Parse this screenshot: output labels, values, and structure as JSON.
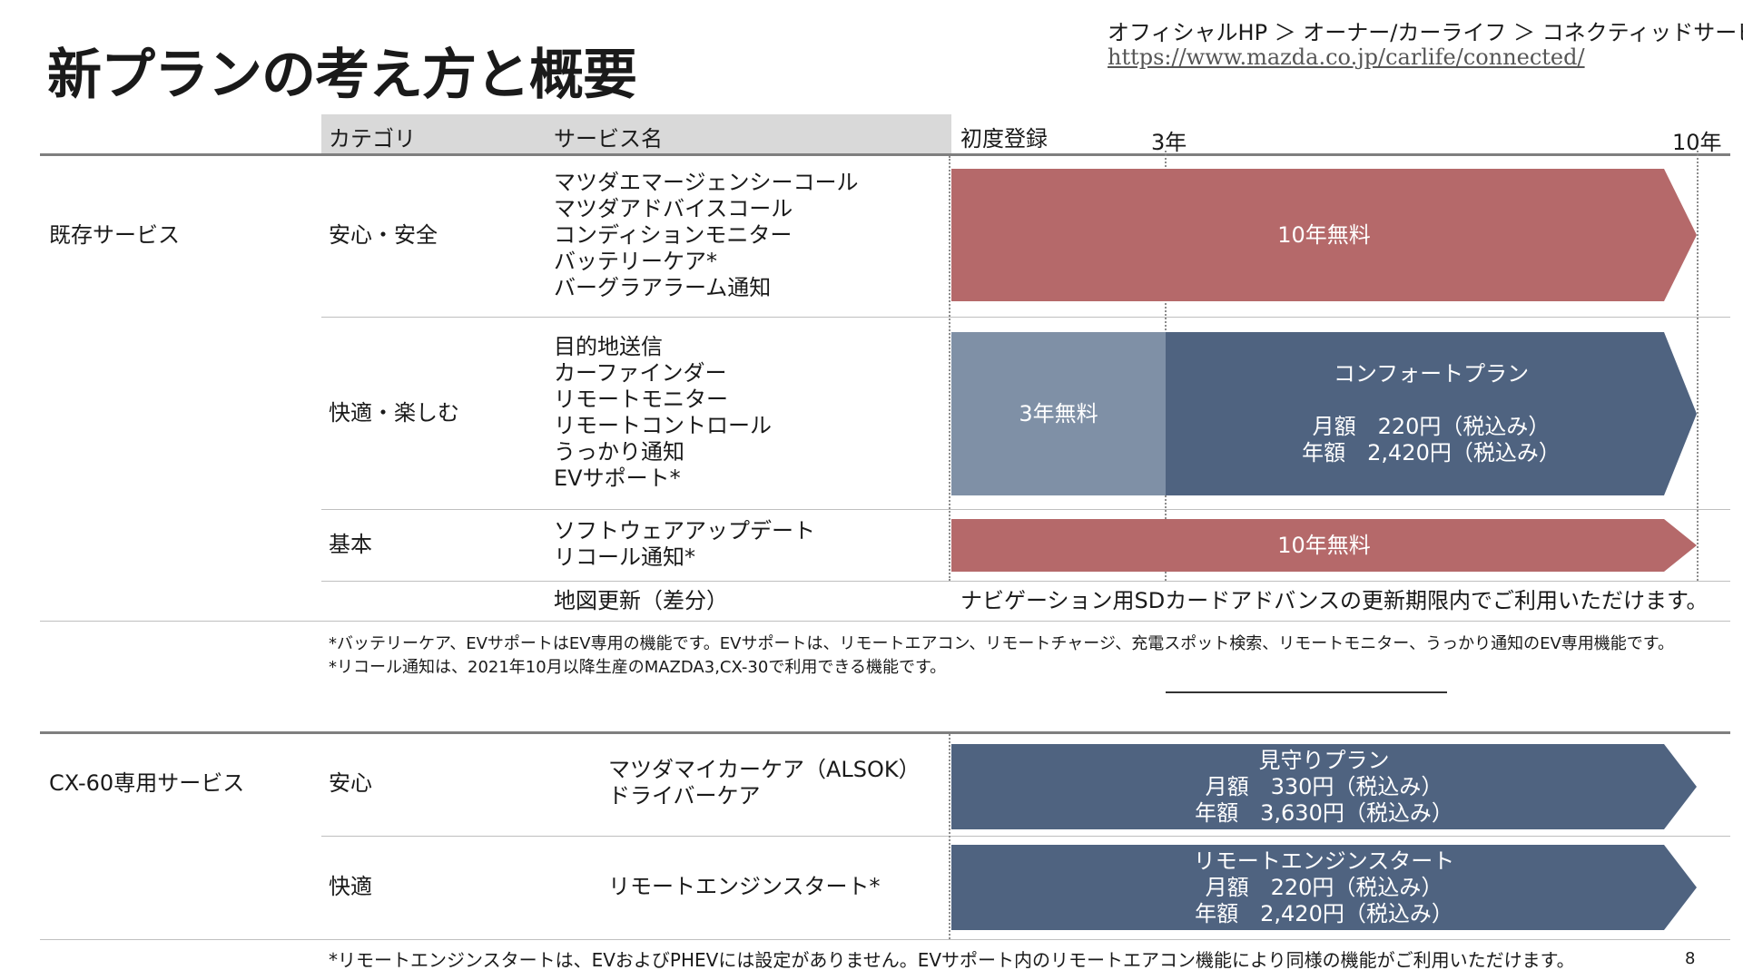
{
  "page": {
    "title": "新プランの考え方と概要",
    "breadcrumb": "オフィシャルHP ＞ オーナー/カーライフ ＞ コネクティッドサービス",
    "url": "https://www.mazda.co.jp/carlife/connected/",
    "page_number": "8"
  },
  "table_header": {
    "category": "カテゴリ",
    "service_name": "サービス名",
    "initial": "初度登録",
    "year3": "3年",
    "year10": "10年"
  },
  "existing": {
    "group_label": "既存サービス",
    "rows": [
      {
        "category": "安心・安全",
        "services": [
          "マツダエマージェンシーコール",
          "マツダアドバイスコール",
          "コンディションモニター",
          "バッテリーケア*",
          "バーグラアラーム通知"
        ],
        "bar": "10年無料"
      },
      {
        "category": "快適・楽しむ",
        "services": [
          "目的地送信",
          "カーファインダー",
          "リモートモニター",
          "リモートコントロール",
          "うっかり通知",
          "EVサポート*"
        ],
        "bar_free": "3年無料",
        "bar_plan_name": "コンフォートプラン",
        "bar_plan_monthly": "月額　220円（税込み）",
        "bar_plan_yearly": "年額　2,420円（税込み）"
      },
      {
        "category": "基本",
        "services": [
          "ソフトウェアアップデート",
          "リコール通知*"
        ],
        "bar": "10年無料"
      }
    ],
    "map_update": {
      "service": "地図更新（差分）",
      "note": "ナビゲーション用SDカードアドバンスの更新期限内でご利用いただけます。"
    },
    "footnotes": [
      "*バッテリーケア、EVサポートはEV専用の機能です。EVサポートは、リモートエアコン、リモートチャージ、充電スポット検索、リモートモニター、うっかり通知のEV専用機能です。",
      "*リコール通知は、2021年10月以降生産のMAZDA3,CX-30で利用できる機能です。"
    ]
  },
  "cx60": {
    "group_label": "CX-60専用サービス",
    "rows": [
      {
        "category": "安心",
        "services": [
          "マツダマイカーケア（ALSOK）",
          "ドライバーケア"
        ],
        "bar_lines": [
          "見守りプラン",
          "月額　330円（税込み）",
          "年額　3,630円（税込み）"
        ]
      },
      {
        "category": "快適",
        "services": [
          "リモートエンジンスタート*"
        ],
        "bar_lines": [
          "リモートエンジンスタート",
          "月額　220円（税込み）",
          "年額　2,420円（税込み）"
        ]
      }
    ],
    "footnote": "*リモートエンジンスタートは、EVおよびPHEVには設定がありません。EVサポート内のリモートエアコン機能により同様の機能がご利用いただけます。"
  },
  "colors": {
    "free_bar": "#b5696a",
    "paid_bar": "#4f6380",
    "free_3yr": "#7f90a6",
    "header_bg": "#d9d9d9"
  }
}
